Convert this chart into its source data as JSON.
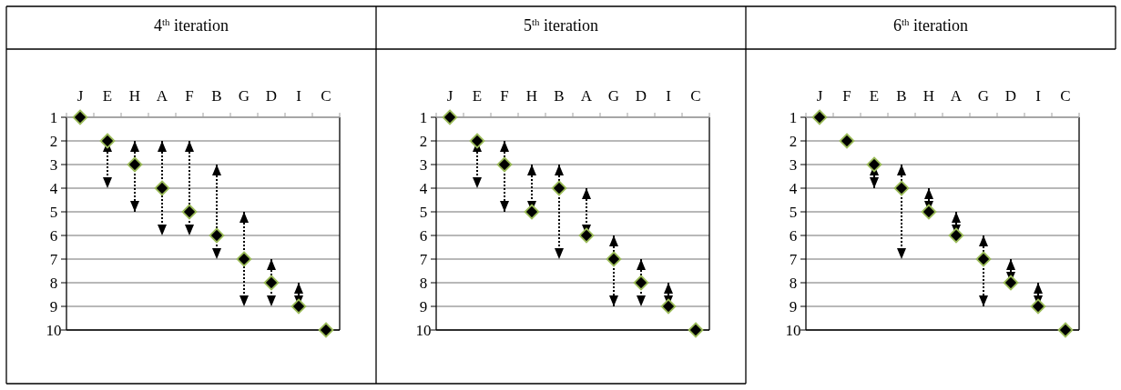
{
  "chart_data": [
    {
      "type": "scatter",
      "title": "4$^{th}$ iteration",
      "categories": [
        "J",
        "E",
        "H",
        "A",
        "F",
        "B",
        "G",
        "D",
        "I",
        "C"
      ],
      "marker": "diamond",
      "grid": "y",
      "ylim": [
        10,
        1
      ],
      "yticks": [
        1,
        2,
        3,
        4,
        5,
        6,
        7,
        8,
        9,
        10
      ],
      "series": [
        {
          "color": "#000000",
          "values": [
            1,
            2,
            3,
            4,
            5,
            6,
            7,
            8,
            9,
            10
          ],
          "errors": [
            null,
            [
              2,
              4
            ],
            [
              2,
              5
            ],
            [
              2,
              6
            ],
            [
              2,
              6
            ],
            [
              3,
              7
            ],
            [
              5,
              9
            ],
            [
              7,
              9
            ],
            [
              8,
              9
            ],
            null
          ]
        }
      ]
    },
    {
      "type": "scatter",
      "title": "5$^{th}$ iteration",
      "categories": [
        "J",
        "E",
        "F",
        "H",
        "B",
        "A",
        "G",
        "D",
        "I",
        "C"
      ],
      "marker": "diamond",
      "grid": "y",
      "ylim": [
        10,
        1
      ],
      "yticks": [
        1,
        2,
        3,
        4,
        5,
        6,
        7,
        8,
        9,
        10
      ],
      "series": [
        {
          "color": "#000000",
          "values": [
            1,
            2,
            3,
            5,
            4,
            6,
            7,
            8,
            9,
            10
          ],
          "errors": [
            null,
            [
              2,
              4
            ],
            [
              2,
              5
            ],
            [
              3,
              5
            ],
            [
              3,
              7
            ],
            [
              4,
              6
            ],
            [
              6,
              9
            ],
            [
              7,
              9
            ],
            [
              8,
              9
            ],
            null
          ]
        }
      ]
    },
    {
      "type": "scatter",
      "title": "6$^{th}$ iteration",
      "categories": [
        "J",
        "F",
        "E",
        "B",
        "H",
        "A",
        "G",
        "D",
        "I",
        "C"
      ],
      "marker": "diamond",
      "grid": "y",
      "ylim": [
        10,
        1
      ],
      "yticks": [
        1,
        2,
        3,
        4,
        5,
        6,
        7,
        8,
        9,
        10
      ],
      "series": [
        {
          "color": "#000000",
          "values": [
            1,
            2,
            3,
            4,
            5,
            6,
            7,
            8,
            9,
            10
          ],
          "errors": [
            null,
            null,
            [
              3,
              4
            ],
            [
              3,
              7
            ],
            [
              4,
              5
            ],
            [
              5,
              6
            ],
            [
              6,
              9
            ],
            [
              7,
              8
            ],
            [
              8,
              9
            ],
            null
          ]
        }
      ]
    }
  ]
}
